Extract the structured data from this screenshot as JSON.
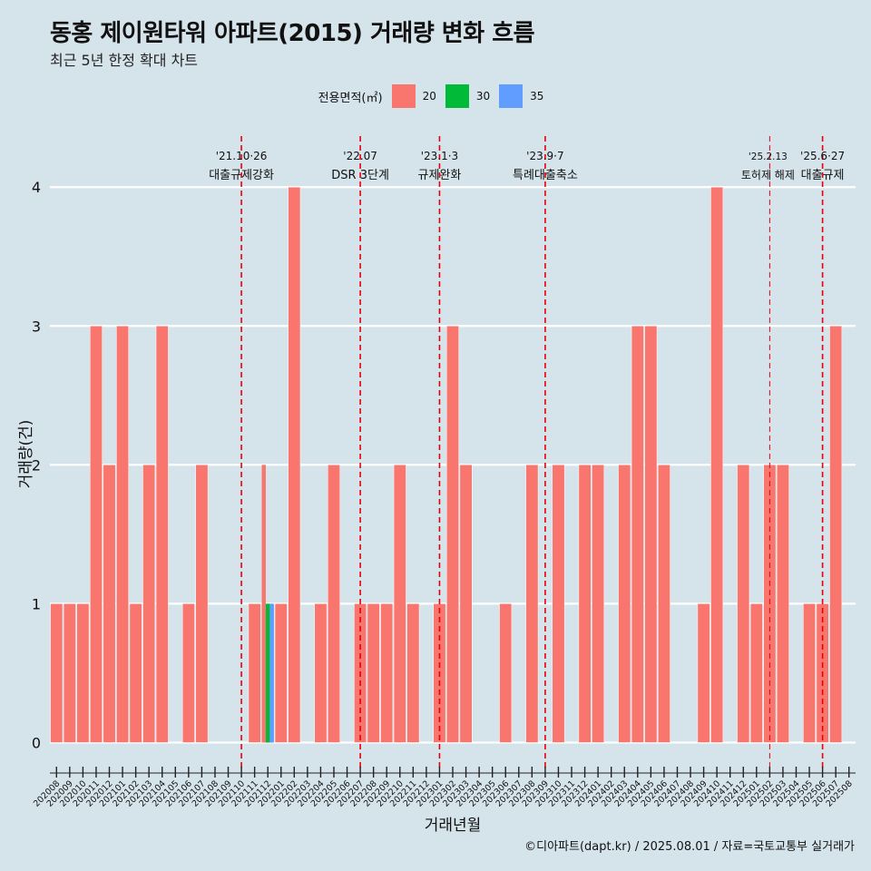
{
  "header": {
    "title": "동홍 제이원타워 아파트(2015) 거래량 변화 흐름",
    "subtitle": "최근 5년 한정 확대 차트"
  },
  "legend": {
    "title": "전용면적(㎡)",
    "items": [
      {
        "label": "20",
        "color": "#f8766d"
      },
      {
        "label": "30",
        "color": "#00ba38"
      },
      {
        "label": "35",
        "color": "#619cff"
      }
    ]
  },
  "caption": "©디아파트(dapt.kr) / 2025.08.01 / 자료=국토교통부 실거래가",
  "chart_data": {
    "type": "bar",
    "xlabel": "거래년월",
    "ylabel": "거래량(건)",
    "ylim": [
      -0.18,
      4.4
    ],
    "yticks": [
      0,
      1,
      2,
      3,
      4
    ],
    "grid": true,
    "legend_position": "top",
    "categories": [
      "202008",
      "202009",
      "202010",
      "202011",
      "202012",
      "202101",
      "202102",
      "202103",
      "202104",
      "202105",
      "202106",
      "202107",
      "202108",
      "202109",
      "202110",
      "202111",
      "202112",
      "202201",
      "202202",
      "202203",
      "202204",
      "202205",
      "202206",
      "202207",
      "202208",
      "202209",
      "202210",
      "202211",
      "202212",
      "202301",
      "202302",
      "202303",
      "202304",
      "202305",
      "202306",
      "202307",
      "202308",
      "202309",
      "202310",
      "202311",
      "202312",
      "202401",
      "202402",
      "202403",
      "202404",
      "202405",
      "202406",
      "202407",
      "202408",
      "202409",
      "202410",
      "202411",
      "202412",
      "202501",
      "202502",
      "202503",
      "202504",
      "202505",
      "202506",
      "202507",
      "202508"
    ],
    "series": [
      {
        "name": "20",
        "color": "#f8766d",
        "values": [
          1,
          1,
          1,
          3,
          2,
          3,
          1,
          2,
          3,
          0,
          1,
          2,
          0,
          0,
          0,
          1,
          2,
          1,
          4,
          0,
          1,
          2,
          0,
          1,
          1,
          1,
          2,
          1,
          0,
          1,
          3,
          2,
          0,
          0,
          1,
          0,
          2,
          0,
          2,
          0,
          2,
          2,
          0,
          2,
          3,
          3,
          2,
          0,
          0,
          1,
          4,
          0,
          2,
          1,
          2,
          2,
          0,
          1,
          1,
          3,
          0
        ]
      },
      {
        "name": "30",
        "color": "#00ba38",
        "values": [
          0,
          0,
          0,
          0,
          0,
          0,
          0,
          0,
          0,
          0,
          0,
          0,
          0,
          0,
          0,
          0,
          1,
          0,
          0,
          0,
          0,
          0,
          0,
          0,
          0,
          0,
          0,
          0,
          0,
          0,
          0,
          0,
          0,
          0,
          0,
          0,
          0,
          0,
          0,
          0,
          0,
          0,
          0,
          0,
          0,
          0,
          0,
          0,
          0,
          0,
          0,
          0,
          0,
          0,
          0,
          0,
          0,
          0,
          0,
          0,
          0
        ]
      },
      {
        "name": "35",
        "color": "#619cff",
        "values": [
          0,
          0,
          0,
          0,
          0,
          0,
          0,
          0,
          0,
          0,
          0,
          0,
          0,
          0,
          0,
          0,
          1,
          0,
          0,
          0,
          0,
          0,
          0,
          0,
          0,
          0,
          0,
          0,
          0,
          0,
          0,
          0,
          0,
          0,
          0,
          0,
          0,
          0,
          0,
          0,
          0,
          0,
          0,
          0,
          0,
          0,
          0,
          0,
          0,
          0,
          0,
          0,
          0,
          0,
          0,
          0,
          0,
          0,
          0,
          0,
          0
        ]
      }
    ],
    "annotations": [
      {
        "x": "202110",
        "date": "'21.10·26",
        "label": "대출규제강화"
      },
      {
        "x": "202207",
        "date": "'22.07",
        "label": "DSR 3단계"
      },
      {
        "x": "202301",
        "date": "'23.1·3",
        "label": "규제완화"
      },
      {
        "x": "202309",
        "date": "'23.9·7",
        "label": "특례대출축소"
      },
      {
        "x": "202502",
        "date": "'25.2.13",
        "label": "토허제 해제"
      },
      {
        "x": "202506",
        "date": "'25.6·27",
        "label": "대출규제"
      }
    ]
  }
}
